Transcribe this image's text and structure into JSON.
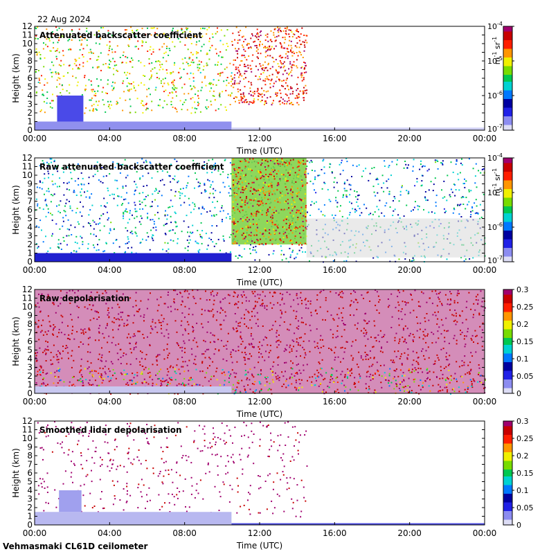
{
  "date_label": "22 Aug 2024",
  "footer_label": "Vehmasmaki CL61D ceilometer",
  "chart_data": [
    {
      "type": "heatmap",
      "title": "Attenuated backscatter coefficient",
      "xlabel": "Time (UTC)",
      "ylabel": "Height (km)",
      "xticks": [
        "00:00",
        "04:00",
        "08:00",
        "12:00",
        "16:00",
        "20:00",
        "00:00"
      ],
      "xlim_hours": [
        0,
        24
      ],
      "ylim": [
        0,
        12
      ],
      "yticks": [
        0,
        1,
        2,
        3,
        4,
        5,
        6,
        7,
        8,
        9,
        10,
        11,
        12
      ],
      "colorbar": {
        "scale": "log",
        "range": [
          1e-07,
          0.0001
        ],
        "ticks": [
          {
            "base": "10",
            "exp": "-4"
          },
          {
            "base": "10",
            "exp": "-5"
          },
          {
            "base": "10",
            "exp": "-6"
          },
          {
            "base": "10",
            "exp": "-7"
          }
        ],
        "label": {
          "base": "m",
          "exp1": "-1",
          "mid": " sr",
          "exp2": "-1"
        }
      }
    },
    {
      "type": "heatmap",
      "title": "Raw attenuated backscatter coefficient",
      "xlabel": "Time (UTC)",
      "ylabel": "Height (km)",
      "xticks": [
        "00:00",
        "04:00",
        "08:00",
        "12:00",
        "16:00",
        "20:00",
        "00:00"
      ],
      "xlim_hours": [
        0,
        24
      ],
      "ylim": [
        0,
        12
      ],
      "yticks": [
        0,
        1,
        2,
        3,
        4,
        5,
        6,
        7,
        8,
        9,
        10,
        11,
        12
      ],
      "colorbar": {
        "scale": "log",
        "range": [
          1e-07,
          0.0001
        ],
        "ticks": [
          {
            "base": "10",
            "exp": "-4"
          },
          {
            "base": "10",
            "exp": "-5"
          },
          {
            "base": "10",
            "exp": "-6"
          },
          {
            "base": "10",
            "exp": "-7"
          }
        ],
        "label": {
          "base": "m",
          "exp1": "-1",
          "mid": " sr",
          "exp2": "-1"
        }
      }
    },
    {
      "type": "heatmap",
      "title": "Raw depolarisation",
      "xlabel": "Time (UTC)",
      "ylabel": "Height (km)",
      "xticks": [
        "00:00",
        "04:00",
        "08:00",
        "12:00",
        "16:00",
        "20:00",
        "00:00"
      ],
      "xlim_hours": [
        0,
        24
      ],
      "ylim": [
        0,
        12
      ],
      "yticks": [
        0,
        1,
        2,
        3,
        4,
        5,
        6,
        7,
        8,
        9,
        10,
        11,
        12
      ],
      "colorbar": {
        "scale": "linear",
        "range": [
          0,
          0.3
        ],
        "ticks": [
          "0.3",
          "0.25",
          "0.2",
          "0.15",
          "0.1",
          "0.05",
          "0"
        ]
      }
    },
    {
      "type": "heatmap",
      "title": "Smoothed lidar depolarisation",
      "xlabel": "Time (UTC)",
      "ylabel": "Height (km)",
      "xticks": [
        "00:00",
        "04:00",
        "08:00",
        "12:00",
        "16:00",
        "20:00",
        "00:00"
      ],
      "xlim_hours": [
        0,
        24
      ],
      "ylim": [
        0,
        12
      ],
      "yticks": [
        0,
        1,
        2,
        3,
        4,
        5,
        6,
        7,
        8,
        9,
        10,
        11,
        12
      ],
      "colorbar": {
        "scale": "linear",
        "range": [
          0,
          0.3
        ],
        "ticks": [
          "0.3",
          "0.25",
          "0.2",
          "0.15",
          "0.1",
          "0.05",
          "0"
        ]
      }
    }
  ]
}
